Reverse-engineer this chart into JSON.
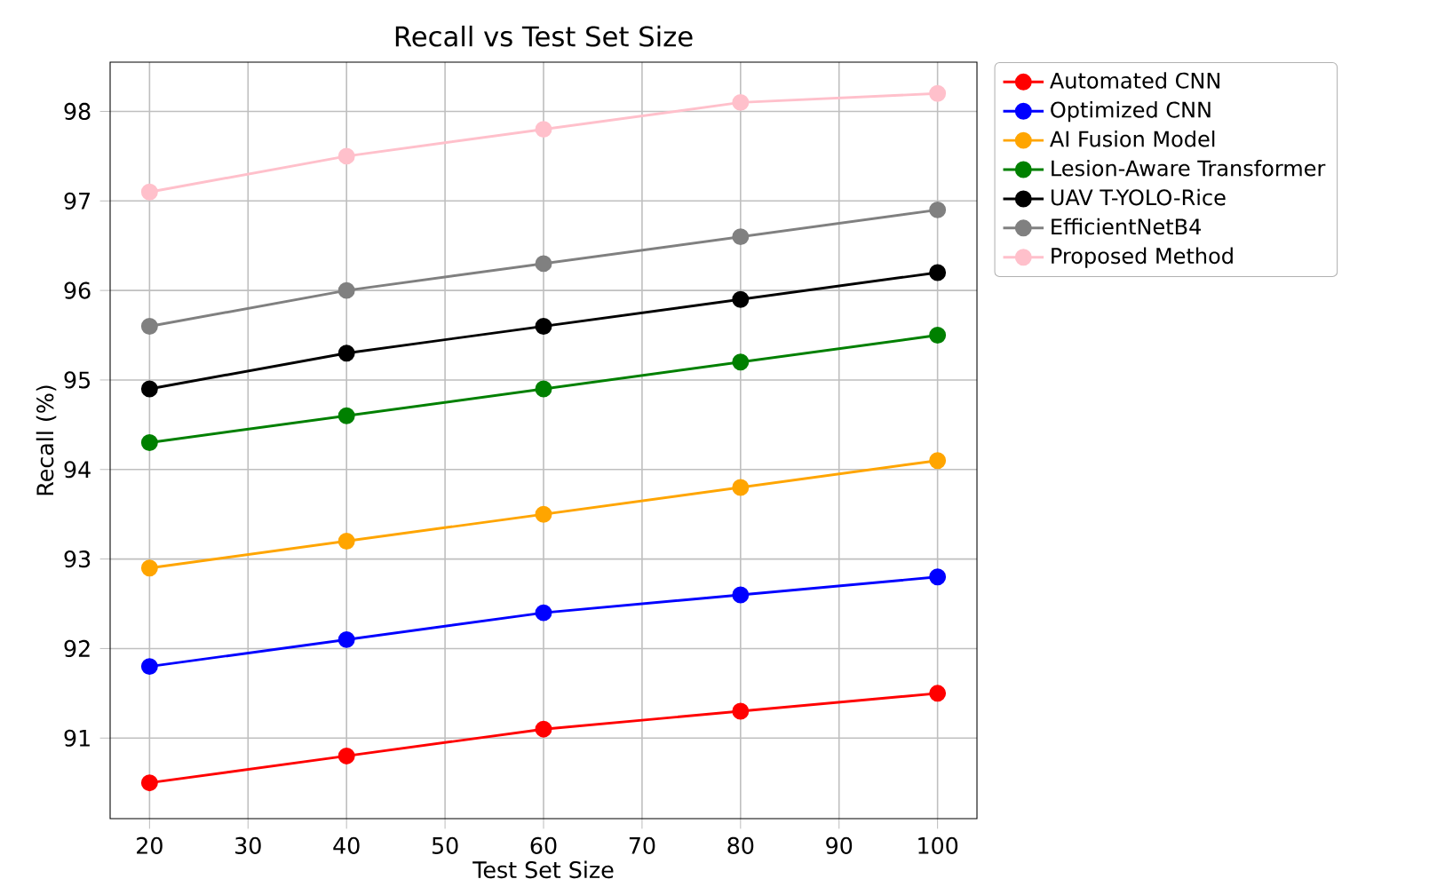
{
  "chart_data": {
    "type": "line",
    "title": "Recall vs Test Set Size",
    "xlabel": "Test Set Size",
    "ylabel": "Recall (%)",
    "x": [
      20,
      40,
      60,
      80,
      100
    ],
    "series": [
      {
        "name": "Automated CNN",
        "color": "#ff0000",
        "values": [
          90.5,
          90.8,
          91.1,
          91.3,
          91.5
        ]
      },
      {
        "name": "Optimized CNN",
        "color": "#0000ff",
        "values": [
          91.8,
          92.1,
          92.4,
          92.6,
          92.8
        ]
      },
      {
        "name": "AI Fusion Model",
        "color": "#ffa500",
        "values": [
          92.9,
          93.2,
          93.5,
          93.8,
          94.1
        ]
      },
      {
        "name": "Lesion-Aware Transformer",
        "color": "#008000",
        "values": [
          94.3,
          94.6,
          94.9,
          95.2,
          95.5
        ]
      },
      {
        "name": "UAV T-YOLO-Rice",
        "color": "#000000",
        "values": [
          94.9,
          95.3,
          95.6,
          95.9,
          96.2
        ]
      },
      {
        "name": "EfficientNetB4",
        "color": "#808080",
        "values": [
          95.6,
          96.0,
          96.3,
          96.6,
          96.9
        ]
      },
      {
        "name": "Proposed Method",
        "color": "#ffc0cb",
        "values": [
          97.1,
          97.5,
          97.8,
          98.1,
          98.2
        ]
      }
    ],
    "xlim": [
      16,
      104
    ],
    "ylim": [
      90.1,
      98.55
    ],
    "xticks": [
      20,
      30,
      40,
      50,
      60,
      70,
      80,
      90,
      100
    ],
    "yticks": [
      91,
      92,
      93,
      94,
      95,
      96,
      97,
      98
    ],
    "grid": true,
    "legend": "right",
    "marker": "circle",
    "line_style": "solid"
  }
}
